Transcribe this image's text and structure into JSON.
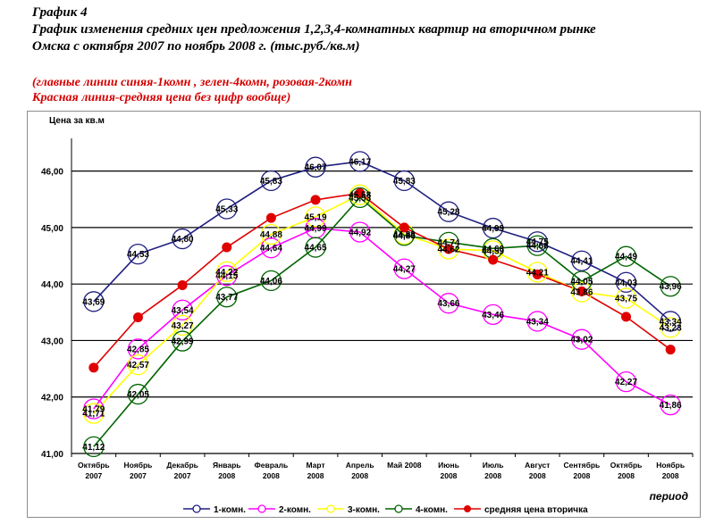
{
  "header": {
    "figure_no": "График 4",
    "title_line1": "График изменения средних цен предложения 1,2,3,4-комнатных квартир на вторичном рынке",
    "title_line2": "Омска с октября 2007 по ноябрь 2008 г. (тыс.руб./кв.м)"
  },
  "notes": {
    "line1": "(главные линии синяя-1комн , зелен-4комн, розовая-2комн",
    "line2": "Красная линия-средняя цена без цифр вообще)"
  },
  "chart_data": {
    "type": "line",
    "ylabel": "Цена за кв.м",
    "xlabel": "период",
    "ylim": [
      41,
      46.5
    ],
    "yticks": [
      "41,00",
      "42,00",
      "43,00",
      "44,00",
      "45,00",
      "46,00"
    ],
    "grid": true,
    "legend_position": "bottom",
    "categories": [
      [
        "Октябрь",
        "2007"
      ],
      [
        "Ноябрь",
        "2007"
      ],
      [
        "Декабрь",
        "2007"
      ],
      [
        "Январь",
        "2008"
      ],
      [
        "Февраль",
        "2008"
      ],
      [
        "Март",
        "2008"
      ],
      [
        "Апрель",
        "2008"
      ],
      [
        "Май 2008",
        ""
      ],
      [
        "Июнь",
        "2008"
      ],
      [
        "Июль",
        "2008"
      ],
      [
        "Август",
        "2008"
      ],
      [
        "Сентябрь",
        "2008"
      ],
      [
        "Октябрь",
        "2008"
      ],
      [
        "Ноябрь",
        "2008"
      ]
    ],
    "series": [
      {
        "name": "1-комн.",
        "color": "#1f1f80",
        "marker": "open",
        "show_labels": true,
        "values": [
          43.69,
          44.53,
          44.8,
          45.33,
          45.83,
          46.07,
          46.17,
          45.83,
          45.28,
          44.99,
          44.75,
          44.41,
          44.03,
          43.34
        ],
        "labels": [
          "43,69",
          "44,53",
          "44,80",
          "45,33",
          "45,83",
          "46,07",
          "46,17",
          "45,83",
          "45,28",
          "44,99",
          "44,75",
          "44,41",
          "44,03",
          "43,34"
        ]
      },
      {
        "name": "2-комн.",
        "color": "#ff00ff",
        "marker": "open",
        "show_labels": true,
        "values": [
          41.79,
          42.85,
          43.54,
          44.15,
          44.64,
          44.99,
          44.92,
          44.27,
          43.66,
          43.46,
          43.34,
          43.02,
          42.27,
          41.86
        ],
        "labels": [
          "41,79",
          "42,85",
          "43,54",
          "44,15",
          "44,64",
          "44,99",
          "44,92",
          "44,27",
          "43,66",
          "43,46",
          "43,34",
          "43,02",
          "42,27",
          "41,86"
        ]
      },
      {
        "name": "3-комн.",
        "color": "#ffff00",
        "marker": "open",
        "show_labels": true,
        "values": [
          41.71,
          42.57,
          43.27,
          44.22,
          44.88,
          45.19,
          45.58,
          44.88,
          44.62,
          44.59,
          44.21,
          43.86,
          43.75,
          43.23
        ],
        "labels": [
          "41,71",
          "42,57",
          "43,27",
          "44,22",
          "44,88",
          "45,19",
          "45,58",
          "44,88",
          "44,62",
          "44,59",
          "44,21",
          "43,86",
          "43,75",
          "43,23"
        ]
      },
      {
        "name": "4-комн.",
        "color": "#006400",
        "marker": "open",
        "show_labels": true,
        "values": [
          41.12,
          42.05,
          42.99,
          43.77,
          44.06,
          44.65,
          45.53,
          44.86,
          44.74,
          44.63,
          44.68,
          44.05,
          44.49,
          43.96
        ],
        "labels": [
          "41,12",
          "42,05",
          "42,99",
          "43,77",
          "44,06",
          "44,65",
          "45,53",
          "44,86",
          "44,74",
          "44,63",
          "44,68",
          "44,05",
          "44,49",
          "43,96"
        ]
      },
      {
        "name": "средняя цена вторичка",
        "color": "#e00000",
        "marker": "filled",
        "show_labels": false,
        "values": [
          42.52,
          43.41,
          43.98,
          44.65,
          45.17,
          45.49,
          45.61,
          45.0,
          44.62,
          44.43,
          44.17,
          43.87,
          43.42,
          42.84
        ]
      }
    ]
  }
}
